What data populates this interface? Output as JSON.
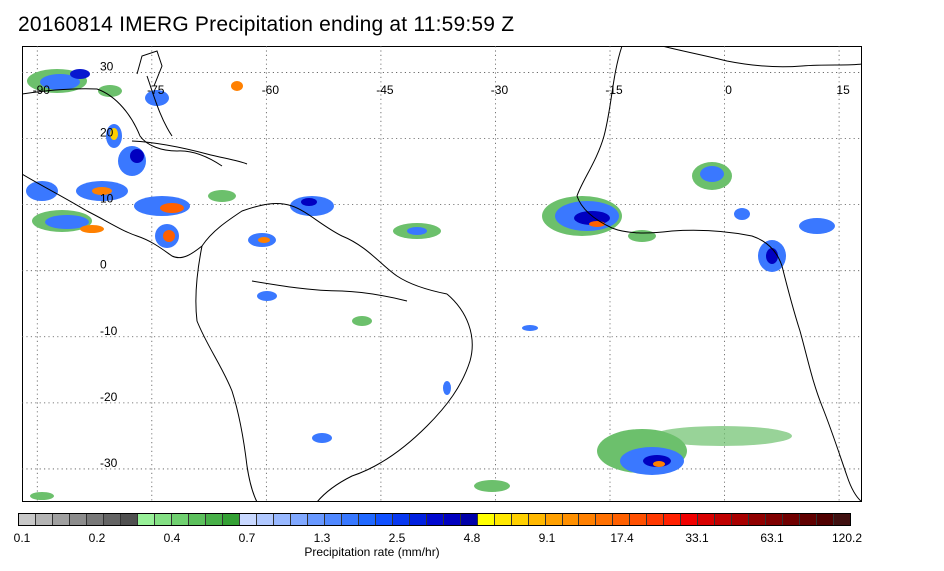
{
  "title": "20160814 IMERG Precipitation ending at 11:59:59 Z",
  "map": {
    "lon_labels": [
      "-90",
      "-75",
      "-60",
      "-45",
      "-30",
      "-15",
      "0",
      "15"
    ],
    "lat_labels": [
      "30",
      "20",
      "10",
      "0",
      "-10",
      "-20",
      "-30"
    ],
    "lon_range": [
      -92,
      18
    ],
    "lat_range": [
      -35,
      34
    ],
    "grid": "dotted",
    "coastline_color": "#000000"
  },
  "colorbar": {
    "colors": [
      "#c8c8c8",
      "#b4b4b4",
      "#a0a0a0",
      "#8c8c8c",
      "#787878",
      "#646464",
      "#505050",
      "#98f098",
      "#84e084",
      "#70d070",
      "#5cc05c",
      "#48b048",
      "#34a034",
      "#c8d8ff",
      "#b0c8ff",
      "#98b8ff",
      "#80a8ff",
      "#6898ff",
      "#5088ff",
      "#3878ff",
      "#2068ff",
      "#1050ff",
      "#0838f0",
      "#0020e0",
      "#0008d0",
      "#0000c0",
      "#0000a8",
      "#ffff00",
      "#ffe800",
      "#ffd000",
      "#ffb800",
      "#ffa000",
      "#ff9000",
      "#ff8000",
      "#ff7000",
      "#ff6000",
      "#ff5000",
      "#ff3800",
      "#ff2000",
      "#f00000",
      "#d80000",
      "#c00000",
      "#a80000",
      "#900000",
      "#800000",
      "#700000",
      "#600000",
      "#500000",
      "#401010"
    ],
    "tick_labels": [
      "0.1",
      "0.2",
      "0.4",
      "0.7",
      "1.3",
      "2.5",
      "4.8",
      "9.1",
      "17.4",
      "33.1",
      "63.1",
      "120.2"
    ],
    "caption": "Precipitation rate (mm/hr)"
  }
}
